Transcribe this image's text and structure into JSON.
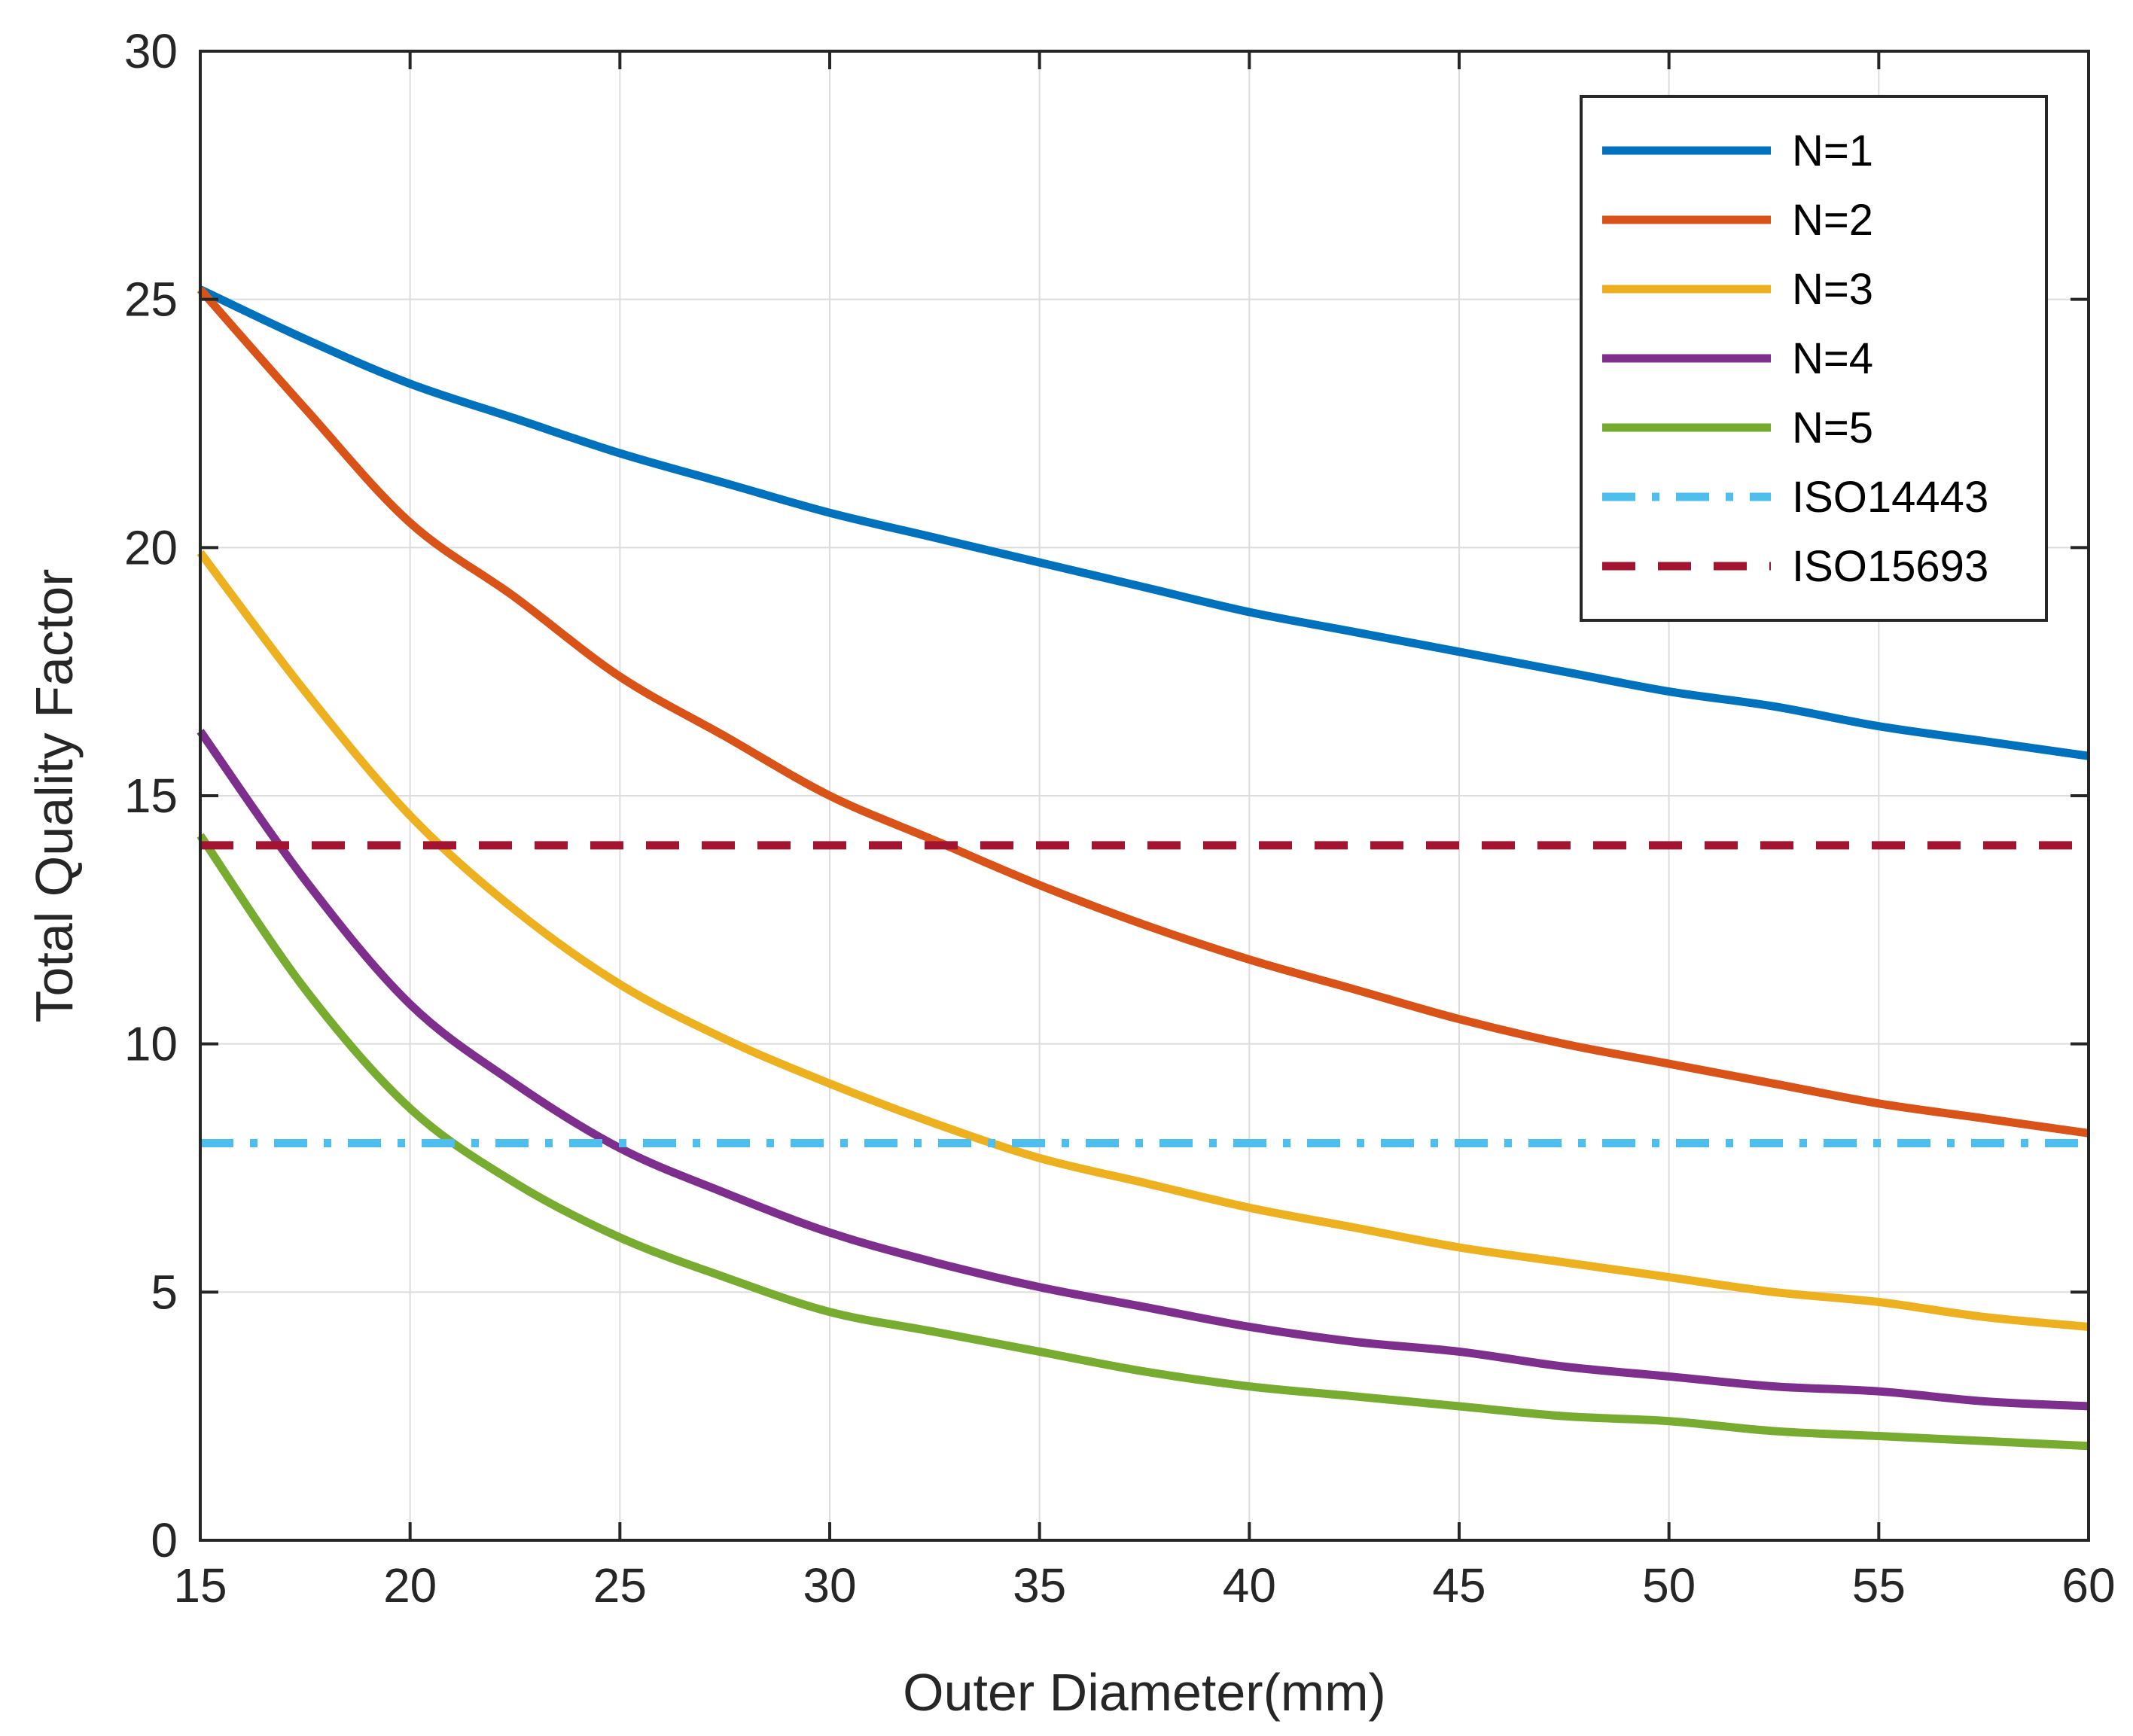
{
  "chart_data": {
    "type": "line",
    "title": "",
    "xlabel": "Outer Diameter(mm)",
    "ylabel": "Total Quality Factor",
    "xlim": [
      15,
      60
    ],
    "ylim": [
      0,
      30
    ],
    "xticks": [
      15,
      20,
      25,
      30,
      35,
      40,
      45,
      50,
      55,
      60
    ],
    "yticks": [
      0,
      5,
      10,
      15,
      20,
      25,
      30
    ],
    "xtick_labels": [
      "15",
      "20",
      "25",
      "30",
      "35",
      "40",
      "45",
      "50",
      "55",
      "60"
    ],
    "ytick_labels": [
      "0",
      "5",
      "10",
      "15",
      "20",
      "25",
      "30"
    ],
    "grid": true,
    "legend_position": "top-right",
    "x": [
      15,
      17.5,
      20,
      22.5,
      25,
      27.5,
      30,
      32.5,
      35,
      37.5,
      40,
      42.5,
      45,
      47.5,
      50,
      52.5,
      55,
      57.5,
      60
    ],
    "series": [
      {
        "name": "N=1",
        "color": "#0072BD",
        "style": "solid",
        "values": [
          25.2,
          24.2,
          23.3,
          22.6,
          21.9,
          21.3,
          20.7,
          20.2,
          19.7,
          19.2,
          18.7,
          18.3,
          17.9,
          17.5,
          17.1,
          16.8,
          16.4,
          16.1,
          15.8
        ]
      },
      {
        "name": "N=2",
        "color": "#D95319",
        "style": "solid",
        "values": [
          25.2,
          22.8,
          20.5,
          19.0,
          17.4,
          16.2,
          15.0,
          14.1,
          13.2,
          12.4,
          11.7,
          11.1,
          10.5,
          10.0,
          9.6,
          9.2,
          8.8,
          8.5,
          8.2
        ]
      },
      {
        "name": "N=3",
        "color": "#EDB120",
        "style": "solid",
        "values": [
          19.9,
          17.1,
          14.6,
          12.7,
          11.2,
          10.1,
          9.2,
          8.4,
          7.7,
          7.2,
          6.7,
          6.3,
          5.9,
          5.6,
          5.3,
          5.0,
          4.8,
          4.5,
          4.3
        ]
      },
      {
        "name": "N=4",
        "color": "#7E2F8E",
        "style": "solid",
        "values": [
          16.3,
          13.3,
          10.8,
          9.2,
          7.9,
          7.0,
          6.2,
          5.6,
          5.1,
          4.7,
          4.3,
          4.0,
          3.8,
          3.5,
          3.3,
          3.1,
          3.0,
          2.8,
          2.7
        ]
      },
      {
        "name": "N=5",
        "color": "#77AC30",
        "style": "solid",
        "values": [
          14.2,
          11.1,
          8.7,
          7.2,
          6.1,
          5.3,
          4.6,
          4.2,
          3.8,
          3.4,
          3.1,
          2.9,
          2.7,
          2.5,
          2.4,
          2.2,
          2.1,
          2.0,
          1.9
        ]
      },
      {
        "name": "ISO14443",
        "color": "#4DBEEE",
        "style": "dashdot",
        "values": [
          8,
          8,
          8,
          8,
          8,
          8,
          8,
          8,
          8,
          8,
          8,
          8,
          8,
          8,
          8,
          8,
          8,
          8,
          8
        ]
      },
      {
        "name": "ISO15693",
        "color": "#A2142F",
        "style": "dashed",
        "values": [
          14,
          14,
          14,
          14,
          14,
          14,
          14,
          14,
          14,
          14,
          14,
          14,
          14,
          14,
          14,
          14,
          14,
          14,
          14
        ]
      }
    ]
  }
}
